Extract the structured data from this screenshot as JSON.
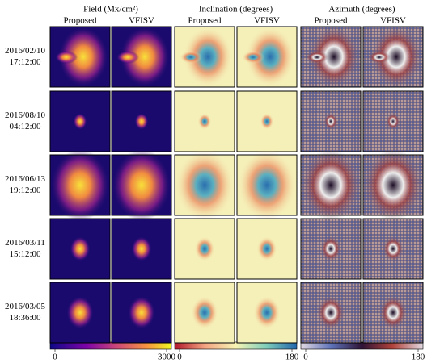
{
  "columns": [
    {
      "title": "Field (Mx/cm²)",
      "subtitles": [
        "Proposed",
        "VFISV"
      ],
      "colorbar": {
        "ticks": [
          0,
          3000
        ]
      }
    },
    {
      "title": "Inclination (degrees)",
      "subtitles": [
        "Proposed",
        "VFISV"
      ],
      "colorbar": {
        "ticks": [
          0,
          180
        ]
      }
    },
    {
      "title": "Azimuth (degrees)",
      "subtitles": [
        "Proposed",
        "VFISV"
      ],
      "colorbar": {
        "ticks": [
          0,
          180
        ]
      }
    }
  ],
  "rows": [
    [
      "2016/02/10",
      "17:12:00"
    ],
    [
      "2016/08/10",
      "04:12:00"
    ],
    [
      "2016/06/13",
      "19:12:00"
    ],
    [
      "2016/03/11",
      "15:12:00"
    ],
    [
      "2016/03/05",
      "18:36:00"
    ]
  ]
}
